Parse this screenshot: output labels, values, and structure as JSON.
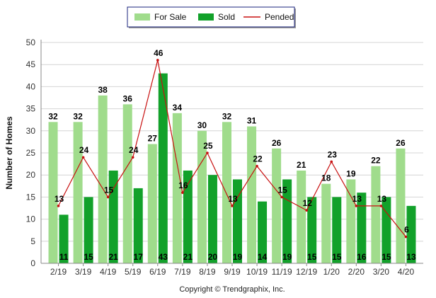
{
  "chart_data": {
    "type": "bar",
    "title": "",
    "xlabel": "",
    "ylabel": "Number of Homes",
    "ylim": [
      0,
      50
    ],
    "yticks": [
      0,
      5,
      10,
      15,
      20,
      25,
      30,
      35,
      40,
      45,
      50
    ],
    "grid": true,
    "legend_position": "top-center",
    "categories": [
      "2/19",
      "3/19",
      "4/19",
      "5/19",
      "6/19",
      "7/19",
      "8/19",
      "9/19",
      "10/19",
      "11/19",
      "12/19",
      "1/20",
      "2/20",
      "3/20",
      "4/20"
    ],
    "series": [
      {
        "name": "For Sale",
        "type": "bar",
        "color": "#a0dc8c",
        "values": [
          32,
          32,
          38,
          36,
          27,
          34,
          30,
          32,
          31,
          26,
          21,
          18,
          19,
          22,
          26
        ]
      },
      {
        "name": "Sold",
        "type": "bar",
        "color": "#12a12a",
        "values": [
          11,
          15,
          21,
          17,
          43,
          21,
          20,
          19,
          14,
          19,
          15,
          15,
          16,
          15,
          13
        ]
      },
      {
        "name": "Pended",
        "type": "line",
        "color": "#c81010",
        "values": [
          13,
          24,
          15,
          24,
          46,
          16,
          25,
          13,
          22,
          15,
          12,
          23,
          13,
          13,
          6
        ]
      }
    ],
    "footer": "Copyright © Trendgraphix, Inc."
  }
}
